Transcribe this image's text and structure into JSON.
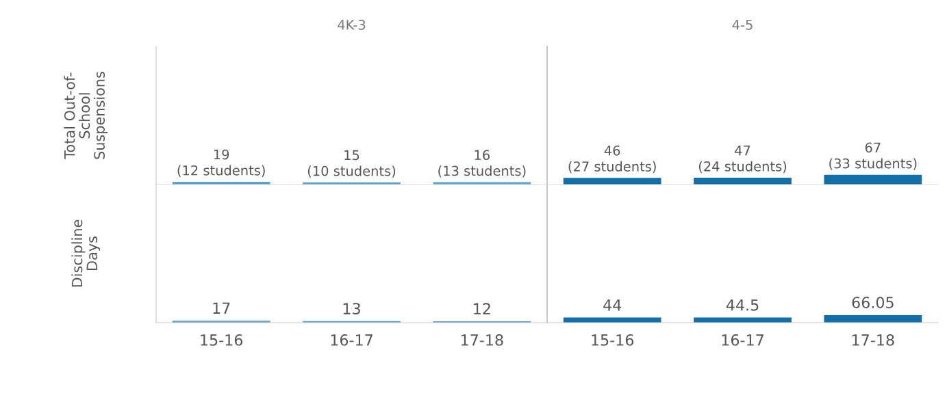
{
  "chart_data": [
    {
      "type": "bar",
      "ylabel": "Total Out-of-\nSchool\nSuspensions",
      "annotations": [
        "4K-3",
        "4-5"
      ],
      "categories": [
        null,
        null,
        null,
        null,
        null,
        null
      ],
      "values": [
        19,
        15,
        16,
        46,
        47,
        67
      ],
      "value_labels": [
        "19\n(12 students)",
        "15\n(10 students)",
        "16\n(13 students)",
        "46\n(27 students)",
        "47\n(24 students)",
        "67\n(33 students)"
      ],
      "colors": [
        "#5ba3cf",
        "#5ba3cf",
        "#5ba3cf",
        "#1170aa",
        "#1170aa",
        "#1170aa"
      ],
      "ylim": [
        0,
        950
      ],
      "tick_labels": false,
      "grid": false
    },
    {
      "type": "bar",
      "ylabel": "Discipline\nDays",
      "categories": [
        "15-16",
        "16-17",
        "17-18",
        "15-16",
        "16-17",
        "17-18"
      ],
      "values": [
        17,
        13,
        12,
        44,
        44.5,
        66.05
      ],
      "data_labels": true,
      "colors": [
        "#5ba3cf",
        "#5ba3cf",
        "#5ba3cf",
        "#1170aa",
        "#1170aa",
        "#1170aa"
      ],
      "ylim": [
        0,
        1200
      ],
      "tick_labels": "x",
      "grid": false
    }
  ]
}
